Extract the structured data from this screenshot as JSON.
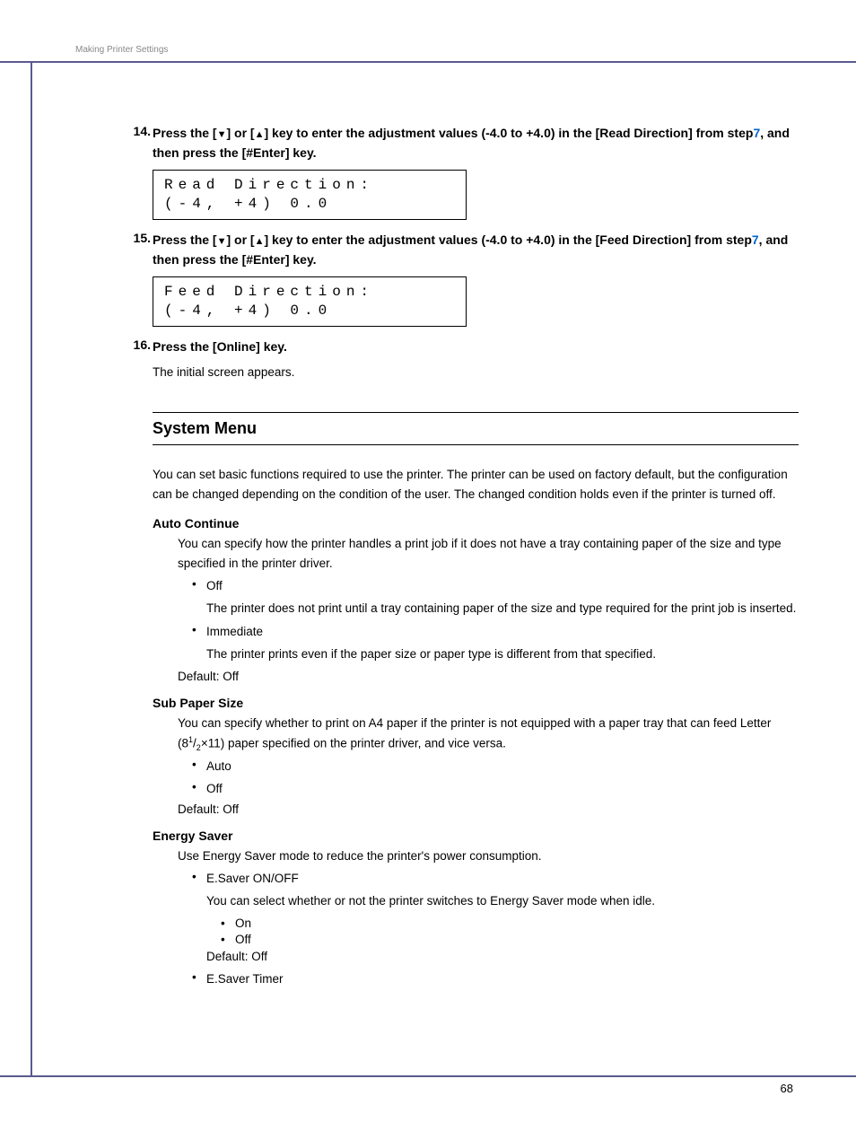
{
  "header_label": "Making Printer Settings",
  "page_number": "68",
  "colors": {
    "rule": "#5a5a8f",
    "link": "#0066cc",
    "header_muted": "#888888",
    "text": "#000000",
    "bg": "#ffffff"
  },
  "steps": [
    {
      "num": "14.",
      "pre": "Press the [",
      "arrow1": "▼",
      "mid1": "] or [",
      "arrow2": "▲",
      "mid2": "] key to enter the adjustment values (-4.0 to +4.0) in the [Read Direction] from step",
      "linkref": "7",
      "post": ", and then press the [#Enter] key.",
      "display_l1": "Read Direction:",
      "display_l2": "(-4, +4)   0.0"
    },
    {
      "num": "15.",
      "pre": "Press the [",
      "arrow1": "▼",
      "mid1": "] or [",
      "arrow2": "▲",
      "mid2": "] key to enter the adjustment values (-4.0 to +4.0) in the [Feed Direction] from step",
      "linkref": "7",
      "post": ", and then press the [#Enter] key.",
      "display_l1": "Feed Direction:",
      "display_l2": "(-4, +4)   0.0"
    },
    {
      "num": "16.",
      "text": "Press the [Online] key.",
      "sub": "The initial screen appears."
    }
  ],
  "section_heading": "System Menu",
  "section_intro": "You can set basic functions required to use the printer. The printer can be used on factory default, but the configuration can be changed depending on the condition of the user. The changed condition holds even if the printer is turned off.",
  "items": [
    {
      "title": "Auto Continue",
      "desc": "You can specify how the printer handles a print job if it does not have a tray containing paper of the size and type specified in the printer driver.",
      "bullets": [
        {
          "label": "Off",
          "sub": "The printer does not print until a tray containing paper of the size and type required for the print job is inserted."
        },
        {
          "label": "Immediate",
          "sub": "The printer prints even if the paper size or paper type is different from that specified."
        }
      ],
      "default": "Default: Off"
    },
    {
      "title": "Sub Paper Size",
      "desc_pre": "You can specify whether to print on A4 paper if the printer is not equipped with a paper tray that can feed Letter (8",
      "frac_sup": "1",
      "frac_slash": "/",
      "frac_sub": "2",
      "desc_post": "×11) paper specified on the printer driver, and vice versa.",
      "bullets": [
        {
          "label": "Auto"
        },
        {
          "label": "Off"
        }
      ],
      "default": "Default: Off"
    },
    {
      "title": "Energy Saver",
      "desc": "Use Energy Saver mode to reduce the printer's power consumption.",
      "bullets": [
        {
          "label": "E.Saver ON/OFF",
          "sub": "You can select whether or not the printer switches to Energy Saver mode when idle.",
          "subbullets": [
            "On",
            "Off"
          ],
          "nested_default": "Default: Off"
        },
        {
          "label": "E.Saver Timer"
        }
      ]
    }
  ]
}
